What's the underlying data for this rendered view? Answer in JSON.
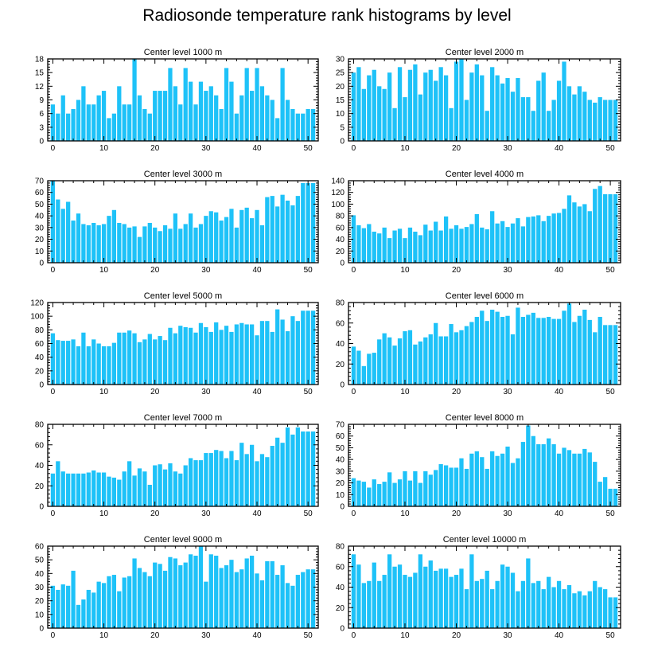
{
  "page_title": "Radiosonde temperature rank histograms by level",
  "colors": {
    "bar": "#1ec2f8",
    "axis": "#000000",
    "background": "#ffffff"
  },
  "chart_data": [
    {
      "type": "bar",
      "title": "Center level 1000 m",
      "xlim": [
        -1,
        52
      ],
      "ylim": [
        0,
        18
      ],
      "xticks": [
        0,
        10,
        20,
        30,
        40,
        50
      ],
      "yticks": [
        0,
        3,
        6,
        9,
        12,
        15,
        18
      ],
      "values": [
        8,
        6,
        10,
        6,
        7,
        9,
        12,
        8,
        8,
        10,
        11,
        5,
        6,
        12,
        8,
        8,
        18,
        10,
        7,
        6,
        11,
        11,
        11,
        16,
        12,
        8,
        16,
        13,
        8,
        13,
        11,
        12,
        10,
        7,
        16,
        13,
        6,
        10,
        16,
        11,
        16,
        12,
        10,
        9,
        5,
        16,
        9,
        7,
        6,
        6,
        7,
        7
      ]
    },
    {
      "type": "bar",
      "title": "Center level 2000 m",
      "xlim": [
        -1,
        52
      ],
      "ylim": [
        0,
        30
      ],
      "xticks": [
        0,
        10,
        20,
        30,
        40,
        50
      ],
      "yticks": [
        0,
        5,
        10,
        15,
        20,
        25,
        30
      ],
      "values": [
        25,
        27,
        19,
        24,
        26,
        20,
        19,
        25,
        12,
        27,
        16,
        26,
        28,
        17,
        25,
        26,
        22,
        27,
        24,
        12,
        29,
        30,
        15,
        25,
        28,
        24,
        11,
        27,
        24,
        21,
        23,
        18,
        23,
        16,
        16,
        11,
        22,
        25,
        11,
        15,
        22,
        29,
        20,
        17,
        20,
        18,
        15,
        14,
        16,
        15,
        15,
        15
      ]
    },
    {
      "type": "bar",
      "title": "Center level 3000 m",
      "xlim": [
        -1,
        52
      ],
      "ylim": [
        0,
        70
      ],
      "xticks": [
        0,
        10,
        20,
        30,
        40,
        50
      ],
      "yticks": [
        0,
        10,
        20,
        30,
        40,
        50,
        60,
        70
      ],
      "values": [
        70,
        54,
        46,
        52,
        36,
        42,
        33,
        32,
        34,
        32,
        33,
        40,
        45,
        34,
        33,
        30,
        31,
        22,
        31,
        34,
        30,
        27,
        32,
        29,
        42,
        29,
        33,
        42,
        30,
        33,
        40,
        44,
        43,
        36,
        39,
        46,
        30,
        45,
        47,
        38,
        45,
        32,
        56,
        57,
        48,
        58,
        53,
        49,
        57,
        68,
        68,
        68
      ]
    },
    {
      "type": "bar",
      "title": "Center level 4000 m",
      "xlim": [
        -1,
        52
      ],
      "ylim": [
        0,
        140
      ],
      "xticks": [
        0,
        10,
        20,
        30,
        40,
        50
      ],
      "yticks": [
        0,
        20,
        40,
        60,
        80,
        100,
        120,
        140
      ],
      "values": [
        81,
        64,
        59,
        66,
        53,
        50,
        60,
        42,
        55,
        58,
        42,
        60,
        53,
        47,
        65,
        55,
        70,
        55,
        79,
        58,
        64,
        58,
        61,
        66,
        83,
        60,
        57,
        88,
        67,
        71,
        61,
        67,
        76,
        62,
        78,
        79,
        81,
        71,
        80,
        84,
        85,
        92,
        115,
        103,
        96,
        100,
        88,
        126,
        131,
        117,
        117,
        117
      ]
    },
    {
      "type": "bar",
      "title": "Center level 5000 m",
      "xlim": [
        -1,
        52
      ],
      "ylim": [
        0,
        120
      ],
      "xticks": [
        0,
        10,
        20,
        30,
        40,
        50
      ],
      "yticks": [
        0,
        20,
        40,
        60,
        80,
        100,
        120
      ],
      "values": [
        75,
        65,
        64,
        64,
        66,
        56,
        76,
        56,
        66,
        60,
        56,
        56,
        61,
        76,
        76,
        79,
        75,
        62,
        66,
        74,
        66,
        71,
        65,
        83,
        75,
        86,
        84,
        83,
        76,
        90,
        84,
        77,
        91,
        80,
        86,
        77,
        88,
        90,
        88,
        88,
        72,
        93,
        93,
        77,
        110,
        95,
        78,
        100,
        93,
        108,
        108,
        108
      ]
    },
    {
      "type": "bar",
      "title": "Center level 6000 m",
      "xlim": [
        -1,
        52
      ],
      "ylim": [
        0,
        80
      ],
      "xticks": [
        0,
        10,
        20,
        30,
        40,
        50
      ],
      "yticks": [
        0,
        20,
        40,
        60,
        80
      ],
      "values": [
        37,
        33,
        18,
        30,
        31,
        44,
        50,
        46,
        38,
        45,
        52,
        53,
        39,
        42,
        46,
        49,
        60,
        47,
        47,
        59,
        51,
        53,
        57,
        61,
        66,
        72,
        62,
        73,
        71,
        66,
        67,
        49,
        75,
        66,
        68,
        70,
        65,
        65,
        66,
        64,
        64,
        72,
        79,
        61,
        67,
        73,
        63,
        51,
        66,
        58,
        58,
        58
      ]
    },
    {
      "type": "bar",
      "title": "Center level 7000 m",
      "xlim": [
        -1,
        52
      ],
      "ylim": [
        0,
        80
      ],
      "xticks": [
        0,
        10,
        20,
        30,
        40,
        50
      ],
      "yticks": [
        0,
        20,
        40,
        60,
        80
      ],
      "values": [
        32,
        44,
        34,
        32,
        32,
        32,
        32,
        33,
        35,
        33,
        33,
        29,
        28,
        26,
        34,
        44,
        30,
        37,
        34,
        21,
        40,
        41,
        36,
        42,
        34,
        32,
        40,
        47,
        45,
        45,
        52,
        52,
        55,
        54,
        47,
        54,
        45,
        62,
        51,
        60,
        44,
        51,
        48,
        59,
        67,
        62,
        77,
        70,
        77,
        73,
        73,
        73
      ]
    },
    {
      "type": "bar",
      "title": "Center level 8000 m",
      "xlim": [
        -1,
        52
      ],
      "ylim": [
        0,
        70
      ],
      "xticks": [
        0,
        10,
        20,
        30,
        40,
        50
      ],
      "yticks": [
        0,
        10,
        20,
        30,
        40,
        50,
        60,
        70
      ],
      "values": [
        24,
        22,
        21,
        16,
        23,
        19,
        21,
        29,
        20,
        23,
        30,
        22,
        30,
        20,
        30,
        27,
        31,
        36,
        35,
        33,
        33,
        41,
        32,
        45,
        47,
        42,
        32,
        47,
        43,
        45,
        51,
        37,
        41,
        55,
        69,
        60,
        53,
        53,
        58,
        53,
        45,
        50,
        48,
        45,
        45,
        49,
        46,
        38,
        21,
        25,
        15,
        15
      ]
    },
    {
      "type": "bar",
      "title": "Center level 9000 m",
      "xlim": [
        -1,
        52
      ],
      "ylim": [
        0,
        60
      ],
      "xticks": [
        0,
        10,
        20,
        30,
        40,
        50
      ],
      "yticks": [
        0,
        10,
        20,
        30,
        40,
        50,
        60
      ],
      "values": [
        31,
        28,
        32,
        31,
        42,
        17,
        21,
        28,
        26,
        34,
        33,
        38,
        39,
        27,
        37,
        38,
        51,
        44,
        41,
        38,
        48,
        47,
        42,
        52,
        51,
        46,
        48,
        54,
        53,
        60,
        34,
        54,
        53,
        44,
        46,
        50,
        41,
        43,
        51,
        53,
        40,
        35,
        49,
        49,
        39,
        46,
        33,
        31,
        39,
        41,
        43,
        43
      ]
    },
    {
      "type": "bar",
      "title": "Center level 10000 m",
      "xlim": [
        -1,
        52
      ],
      "ylim": [
        0,
        80
      ],
      "xticks": [
        0,
        10,
        20,
        30,
        40,
        50
      ],
      "yticks": [
        0,
        20,
        40,
        60,
        80
      ],
      "values": [
        72,
        62,
        44,
        46,
        64,
        46,
        52,
        72,
        60,
        62,
        52,
        50,
        54,
        72,
        60,
        66,
        56,
        58,
        58,
        50,
        52,
        58,
        38,
        72,
        46,
        48,
        56,
        38,
        46,
        62,
        60,
        54,
        36,
        46,
        68,
        44,
        46,
        38,
        50,
        40,
        46,
        38,
        42,
        34,
        36,
        32,
        36,
        46,
        40,
        38,
        30,
        30
      ]
    }
  ]
}
